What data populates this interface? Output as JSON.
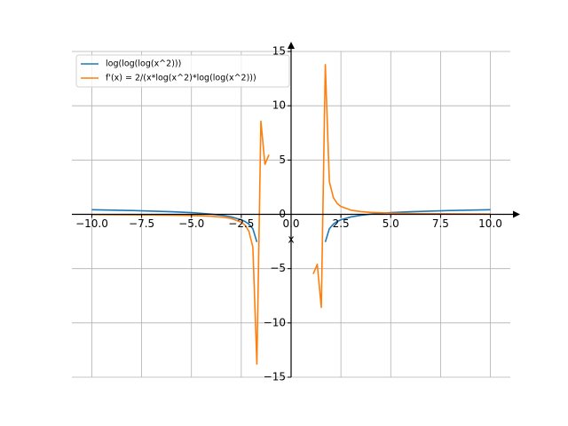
{
  "chart_data": {
    "type": "line",
    "x_label": "x",
    "x": [
      -10,
      -8,
      -6,
      -5,
      -4,
      -3.5,
      -3,
      -2.5,
      -2.323,
      -2.121,
      -1.919,
      -1.717,
      -1.515,
      -1.313,
      -1.111,
      0,
      1.111,
      1.313,
      1.515,
      1.717,
      1.919,
      2.121,
      2.323,
      2.5,
      3,
      3.5,
      4,
      5,
      6,
      8,
      10
    ],
    "series": [
      {
        "name": "log(log(log(x^2)))",
        "color": "#1f77b4",
        "values": [
          0.4234,
          0.3543,
          0.2439,
          0.1561,
          0.0196,
          -0.085,
          -0.2393,
          -0.5012,
          -0.6497,
          -0.8965,
          -1.3276,
          -2.55,
          null,
          null,
          null,
          null,
          null,
          null,
          null,
          -2.55,
          -1.3276,
          -0.8965,
          -0.6497,
          -0.5012,
          -0.2393,
          -0.085,
          0.0196,
          0.1561,
          0.2439,
          0.3543,
          0.4234
        ]
      },
      {
        "name": "f'(x) = 2/(x*log(x^2)*log(log(x^2)))",
        "color": "#ff7f0e",
        "values": [
          -0.0284,
          -0.0422,
          -0.0729,
          -0.1063,
          -0.1768,
          -0.2483,
          -0.3854,
          -0.7206,
          -0.978,
          -1.537,
          -3.016,
          -13.79,
          8.58,
          4.6,
          5.49,
          null,
          -5.49,
          -4.6,
          -8.58,
          13.79,
          3.016,
          1.537,
          0.978,
          0.7206,
          0.3854,
          0.2483,
          0.1768,
          0.1063,
          0.0729,
          0.0422,
          0.0284
        ]
      }
    ],
    "xlim": [
      -11,
      11
    ],
    "ylim": [
      -15,
      15
    ],
    "xticks": [
      {
        "value": -10,
        "label": "−10.0"
      },
      {
        "value": -7.5,
        "label": "−7.5"
      },
      {
        "value": -5,
        "label": "−5.0"
      },
      {
        "value": -2.5,
        "label": "−2.5"
      },
      {
        "value": 0,
        "label": "0.0"
      },
      {
        "value": 2.5,
        "label": "2.5"
      },
      {
        "value": 5,
        "label": "5.0"
      },
      {
        "value": 7.5,
        "label": "7.5"
      },
      {
        "value": 10,
        "label": "10.0"
      }
    ],
    "yticks": [
      {
        "value": -15,
        "label": "−15"
      },
      {
        "value": -10,
        "label": "−10"
      },
      {
        "value": -5,
        "label": "−5"
      },
      0,
      5,
      10,
      15
    ],
    "grid": true,
    "legend": "upper left"
  }
}
